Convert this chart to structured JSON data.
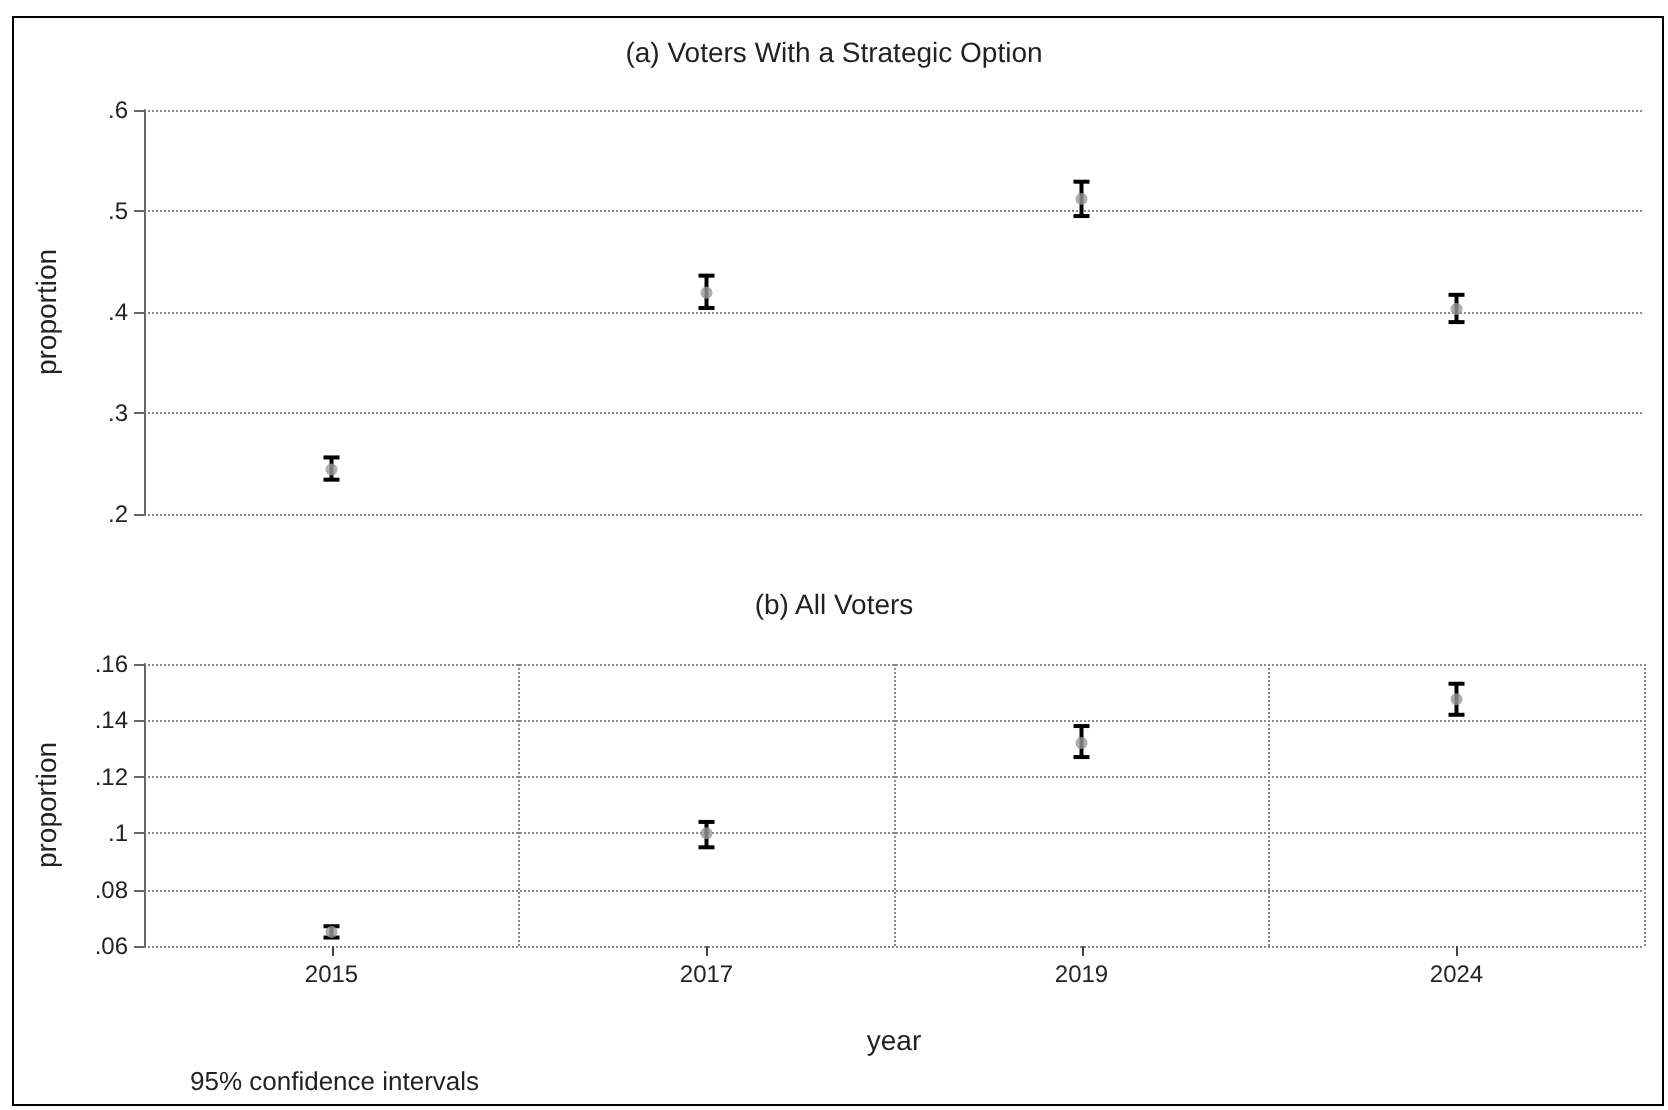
{
  "chart_data": [
    {
      "type": "scatter",
      "title": "(a) Voters With a Strategic Option",
      "ylabel": "proportion",
      "categories": [
        "2015",
        "2017",
        "2019",
        "2024"
      ],
      "series": [
        {
          "color": "#999999",
          "values": [
            0.244,
            0.419,
            0.512,
            0.403
          ],
          "errors": [
            [
              0.234,
              0.256
            ],
            [
              0.404,
              0.436
            ],
            [
              0.495,
              0.529
            ],
            [
              0.39,
              0.417
            ]
          ]
        }
      ],
      "ylim": [
        0.2,
        0.6
      ],
      "yticks": [
        {
          "value": 0.2,
          "label": ".2"
        },
        {
          "value": 0.3,
          "label": ".3"
        },
        {
          "value": 0.4,
          "label": ".4"
        },
        {
          "value": 0.5,
          "label": ".5"
        },
        {
          "value": 0.6,
          "label": ".6"
        }
      ],
      "grid": "y",
      "marker": "circle",
      "tick_labels": "y"
    },
    {
      "type": "scatter",
      "title": "(b) All Voters",
      "xlabel": "year",
      "ylabel": "proportion",
      "categories": [
        "2015",
        "2017",
        "2019",
        "2024"
      ],
      "series": [
        {
          "color": "#999999",
          "values": [
            0.065,
            0.1,
            0.132,
            0.1475
          ],
          "errors": [
            [
              0.063,
              0.067
            ],
            [
              0.095,
              0.104
            ],
            [
              0.127,
              0.138
            ],
            [
              0.142,
              0.153
            ]
          ]
        }
      ],
      "ylim": [
        0.06,
        0.16
      ],
      "yticks": [
        {
          "value": 0.06,
          "label": ".06"
        },
        {
          "value": 0.08,
          "label": ".08"
        },
        {
          "value": 0.1,
          "label": ".1"
        },
        {
          "value": 0.12,
          "label": ".12"
        },
        {
          "value": 0.14,
          "label": ".14"
        },
        {
          "value": 0.16,
          "label": ".16"
        }
      ],
      "grid": true,
      "marker": "circle",
      "annotations": [
        "95% confidence intervals"
      ]
    }
  ]
}
